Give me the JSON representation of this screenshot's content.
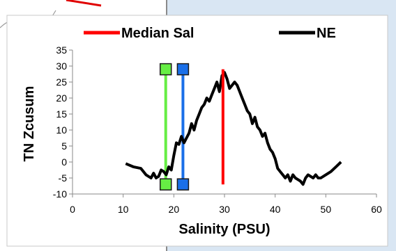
{
  "chart_data": {
    "type": "line",
    "xlabel": "Salinity (PSU)",
    "ylabel": "TN Zcusum",
    "xlim": [
      0,
      60
    ],
    "ylim": [
      -10,
      35
    ],
    "x_ticks": [
      "0",
      "10",
      "20",
      "30",
      "40",
      "50",
      "60"
    ],
    "y_ticks": [
      "-10",
      "-5",
      "0",
      "5",
      "10",
      "15",
      "20",
      "25",
      "30",
      "35"
    ],
    "legend_position": "top",
    "grid": false,
    "series": [
      {
        "name": "NE",
        "color": "#000000",
        "x": [
          10.5,
          12,
          13.5,
          14.5,
          15.5,
          16,
          16.5,
          17,
          17.5,
          18,
          18.5,
          19,
          19.5,
          20,
          20.5,
          21,
          21.5,
          22,
          22.5,
          23,
          23.5,
          24,
          24.5,
          25,
          25.5,
          26,
          26.5,
          27,
          27.5,
          28,
          28.5,
          29,
          29.5,
          30,
          30.5,
          31,
          31.5,
          32,
          32.5,
          33,
          33.5,
          34,
          34.5,
          35,
          35.5,
          36,
          36.5,
          37,
          37.5,
          38,
          38.5,
          39,
          39.5,
          40,
          40.5,
          41,
          41.5,
          42,
          42.5,
          43,
          43.5,
          44,
          44.5,
          45,
          45.5,
          46,
          46.5,
          47,
          47.5,
          48,
          48.5,
          49,
          50,
          51,
          52,
          53
        ],
        "values": [
          -0.5,
          -1.5,
          -2,
          -4,
          -5,
          -3.5,
          -5,
          -4.5,
          -2.5,
          -3,
          -4,
          -1.5,
          -2.5,
          2,
          6,
          5.5,
          8,
          6,
          7.5,
          9,
          12,
          10,
          13,
          15,
          17,
          18,
          20,
          19,
          21,
          23,
          25,
          22,
          27,
          28,
          26,
          23,
          24,
          25,
          24,
          22,
          20,
          18,
          16,
          15,
          12,
          14,
          11,
          10,
          8,
          9,
          6,
          4,
          3,
          1,
          -2,
          -3,
          -4,
          -5,
          -4,
          -6,
          -4,
          -5,
          -5.5,
          -6,
          -7,
          -5,
          -4,
          -4.5,
          -5,
          -4,
          -5,
          -5,
          -4,
          -3,
          -1.5,
          0
        ]
      },
      {
        "name": "Median Sal",
        "color": "#ff0000",
        "x": [
          29.7,
          29.7
        ],
        "values": [
          -7,
          29
        ]
      }
    ],
    "markers": [
      {
        "color": "#66ee44",
        "x": 18.4,
        "y_top": 29,
        "y_bottom": -7
      },
      {
        "color": "#1a6fe8",
        "x": 21.8,
        "y_top": 29,
        "y_bottom": -7
      }
    ]
  }
}
